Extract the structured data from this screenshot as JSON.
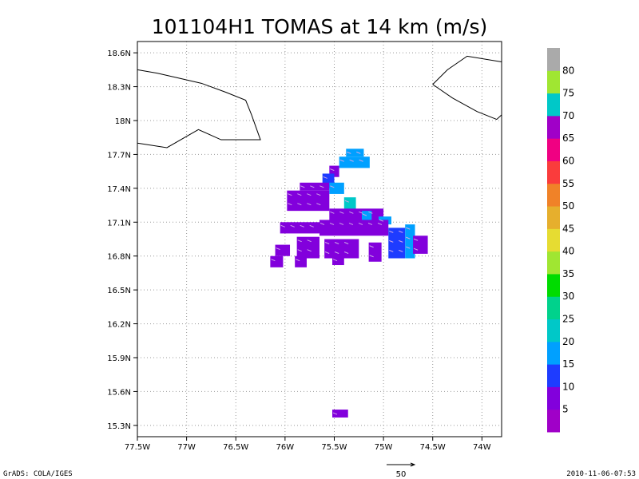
{
  "chart_data": {
    "type": "heatmap",
    "title": "101104H1 TOMAS at 14 km (m/s)",
    "xlabel": "",
    "ylabel": "",
    "x_range_deg_w": [
      77.5,
      73.8
    ],
    "y_range_deg_n": [
      15.2,
      18.7
    ],
    "x_tick_labels": [
      "77.5W",
      "77W",
      "76.5W",
      "76W",
      "75.5W",
      "75W",
      "74.5W",
      "74W"
    ],
    "x_tick_values": [
      77.5,
      77.0,
      76.5,
      76.0,
      75.5,
      75.0,
      74.5,
      74.0
    ],
    "y_tick_labels": [
      "15.3N",
      "15.6N",
      "15.9N",
      "16.2N",
      "16.5N",
      "16.8N",
      "17.1N",
      "17.4N",
      "17.7N",
      "18N",
      "18.3N",
      "18.6N"
    ],
    "y_tick_values": [
      15.3,
      15.6,
      15.9,
      16.2,
      16.5,
      16.8,
      17.1,
      17.4,
      17.7,
      18.0,
      18.3,
      18.6
    ],
    "grid": true,
    "colorbar": {
      "labels": [
        "5",
        "10",
        "15",
        "20",
        "25",
        "30",
        "35",
        "40",
        "45",
        "50",
        "55",
        "60",
        "65",
        "70",
        "75",
        "80"
      ],
      "colors": [
        "#a000c8",
        "#8200dc",
        "#1e3cff",
        "#00a0ff",
        "#00c8c8",
        "#00d28c",
        "#00dc00",
        "#a0e632",
        "#e6dc32",
        "#e6af2d",
        "#f08228",
        "#fa3c3c",
        "#f00082",
        "#a000c8",
        "#00c8c8",
        "#a0e632",
        "#aaaaaa"
      ]
    },
    "wind_cells": [
      {
        "lon": 75.38,
        "lat": 17.75,
        "lon2": 75.2,
        "lat2": 17.68,
        "speed": 15
      },
      {
        "lon": 75.45,
        "lat": 17.68,
        "lon2": 75.14,
        "lat2": 17.58,
        "speed": 15
      },
      {
        "lon": 75.55,
        "lat": 17.6,
        "lon2": 75.45,
        "lat2": 17.5,
        "speed": 5
      },
      {
        "lon": 75.62,
        "lat": 17.53,
        "lon2": 75.5,
        "lat2": 17.4,
        "speed": 10
      },
      {
        "lon": 75.85,
        "lat": 17.45,
        "lon2": 75.55,
        "lat2": 17.38,
        "speed": 5
      },
      {
        "lon": 75.55,
        "lat": 17.45,
        "lon2": 75.4,
        "lat2": 17.35,
        "speed": 15
      },
      {
        "lon": 75.98,
        "lat": 17.38,
        "lon2": 75.55,
        "lat2": 17.2,
        "speed": 5
      },
      {
        "lon": 75.4,
        "lat": 17.32,
        "lon2": 75.28,
        "lat2": 17.2,
        "speed": 20
      },
      {
        "lon": 75.55,
        "lat": 17.22,
        "lon2": 75.0,
        "lat2": 17.1,
        "speed": 5
      },
      {
        "lon": 75.05,
        "lat": 17.15,
        "lon2": 74.92,
        "lat2": 17.08,
        "speed": 15
      },
      {
        "lon": 75.22,
        "lat": 17.2,
        "lon2": 75.12,
        "lat2": 17.1,
        "speed": 15
      },
      {
        "lon": 76.05,
        "lat": 17.1,
        "lon2": 75.65,
        "lat2": 17.0,
        "speed": 5
      },
      {
        "lon": 75.65,
        "lat": 17.12,
        "lon2": 74.95,
        "lat2": 16.98,
        "speed": 5
      },
      {
        "lon": 74.95,
        "lat": 17.05,
        "lon2": 74.78,
        "lat2": 16.78,
        "speed": 10
      },
      {
        "lon": 74.78,
        "lat": 17.08,
        "lon2": 74.68,
        "lat2": 16.78,
        "speed": 15
      },
      {
        "lon": 74.7,
        "lat": 16.98,
        "lon2": 74.55,
        "lat2": 16.82,
        "speed": 5
      },
      {
        "lon": 76.1,
        "lat": 16.9,
        "lon2": 75.95,
        "lat2": 16.8,
        "speed": 5
      },
      {
        "lon": 75.88,
        "lat": 16.97,
        "lon2": 75.65,
        "lat2": 16.78,
        "speed": 5
      },
      {
        "lon": 75.6,
        "lat": 16.95,
        "lon2": 75.25,
        "lat2": 16.78,
        "speed": 5
      },
      {
        "lon": 75.15,
        "lat": 16.92,
        "lon2": 75.02,
        "lat2": 16.75,
        "speed": 5
      },
      {
        "lon": 76.15,
        "lat": 16.8,
        "lon2": 76.02,
        "lat2": 16.7,
        "speed": 5
      },
      {
        "lon": 75.9,
        "lat": 16.8,
        "lon2": 75.78,
        "lat2": 16.7,
        "speed": 5
      },
      {
        "lon": 75.52,
        "lat": 16.8,
        "lon2": 75.4,
        "lat2": 16.72,
        "speed": 5
      },
      {
        "lon": 75.52,
        "lat": 15.44,
        "lon2": 75.36,
        "lat2": 15.37,
        "speed": 5
      }
    ],
    "coastlines": [
      [
        [
          77.5,
          18.45
        ],
        [
          77.3,
          18.42
        ],
        [
          77.1,
          18.38
        ],
        [
          76.85,
          18.33
        ],
        [
          76.6,
          18.25
        ],
        [
          76.4,
          18.18
        ],
        [
          76.34,
          18.05
        ],
        [
          76.25,
          17.83
        ],
        [
          76.45,
          17.83
        ],
        [
          76.65,
          17.83
        ],
        [
          76.88,
          17.92
        ],
        [
          77.2,
          17.76
        ],
        [
          77.5,
          17.8
        ]
      ],
      [
        [
          74.5,
          18.32
        ],
        [
          74.35,
          18.45
        ],
        [
          74.15,
          18.57
        ],
        [
          73.8,
          18.52
        ]
      ],
      [
        [
          74.5,
          18.32
        ],
        [
          74.3,
          18.2
        ],
        [
          74.05,
          18.08
        ],
        [
          73.85,
          18.01
        ],
        [
          73.8,
          18.05
        ]
      ]
    ],
    "reference_vector": "50"
  },
  "footer": {
    "left": "GrADS: COLA/IGES",
    "right": "2010-11-06-07:53"
  }
}
